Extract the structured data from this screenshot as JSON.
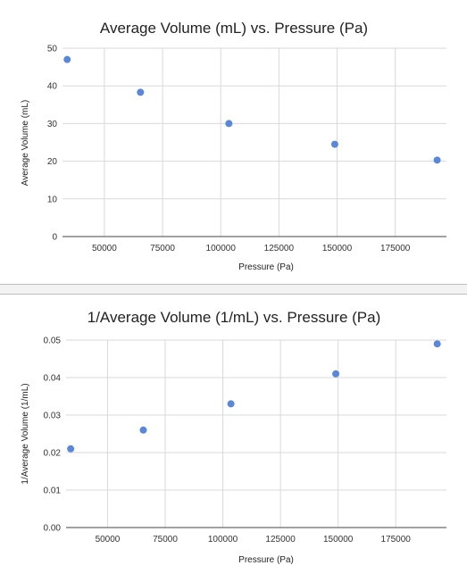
{
  "chart_data": [
    {
      "type": "scatter",
      "title": "Average Volume (mL) vs. Pressure (Pa)",
      "xlabel": "Pressure (Pa)",
      "ylabel": "Average Volume (mL)",
      "xlim": [
        32000,
        197000
      ],
      "ylim": [
        0,
        50
      ],
      "x_ticks": [
        50000,
        75000,
        100000,
        125000,
        150000,
        175000
      ],
      "y_ticks": [
        0,
        10,
        20,
        30,
        40,
        50
      ],
      "y_tick_labels": [
        "0",
        "10",
        "20",
        "30",
        "40",
        "50"
      ],
      "grid": true,
      "legend": "none",
      "series": [
        {
          "color": "#5b87d6",
          "points": [
            {
              "x": 34000,
              "y": 47
            },
            {
              "x": 65500,
              "y": 38.3
            },
            {
              "x": 103500,
              "y": 30
            },
            {
              "x": 149000,
              "y": 24.5
            },
            {
              "x": 193000,
              "y": 20.3
            }
          ]
        }
      ]
    },
    {
      "type": "scatter",
      "title": "1/Average Volume (1/mL) vs. Pressure (Pa)",
      "xlabel": "Pressure (Pa)",
      "ylabel": "1/Average Volume (1/mL)",
      "xlim": [
        32000,
        197000
      ],
      "ylim": [
        0,
        0.05
      ],
      "x_ticks": [
        50000,
        75000,
        100000,
        125000,
        150000,
        175000
      ],
      "y_ticks": [
        0,
        0.01,
        0.02,
        0.03,
        0.04,
        0.05
      ],
      "y_tick_labels": [
        "0.00",
        "0.01",
        "0.02",
        "0.03",
        "0.04",
        "0.05"
      ],
      "grid": true,
      "legend": "none",
      "series": [
        {
          "color": "#5b87d6",
          "points": [
            {
              "x": 34000,
              "y": 0.021
            },
            {
              "x": 65500,
              "y": 0.026
            },
            {
              "x": 103500,
              "y": 0.033
            },
            {
              "x": 149000,
              "y": 0.041
            },
            {
              "x": 193000,
              "y": 0.049
            }
          ]
        }
      ]
    }
  ]
}
